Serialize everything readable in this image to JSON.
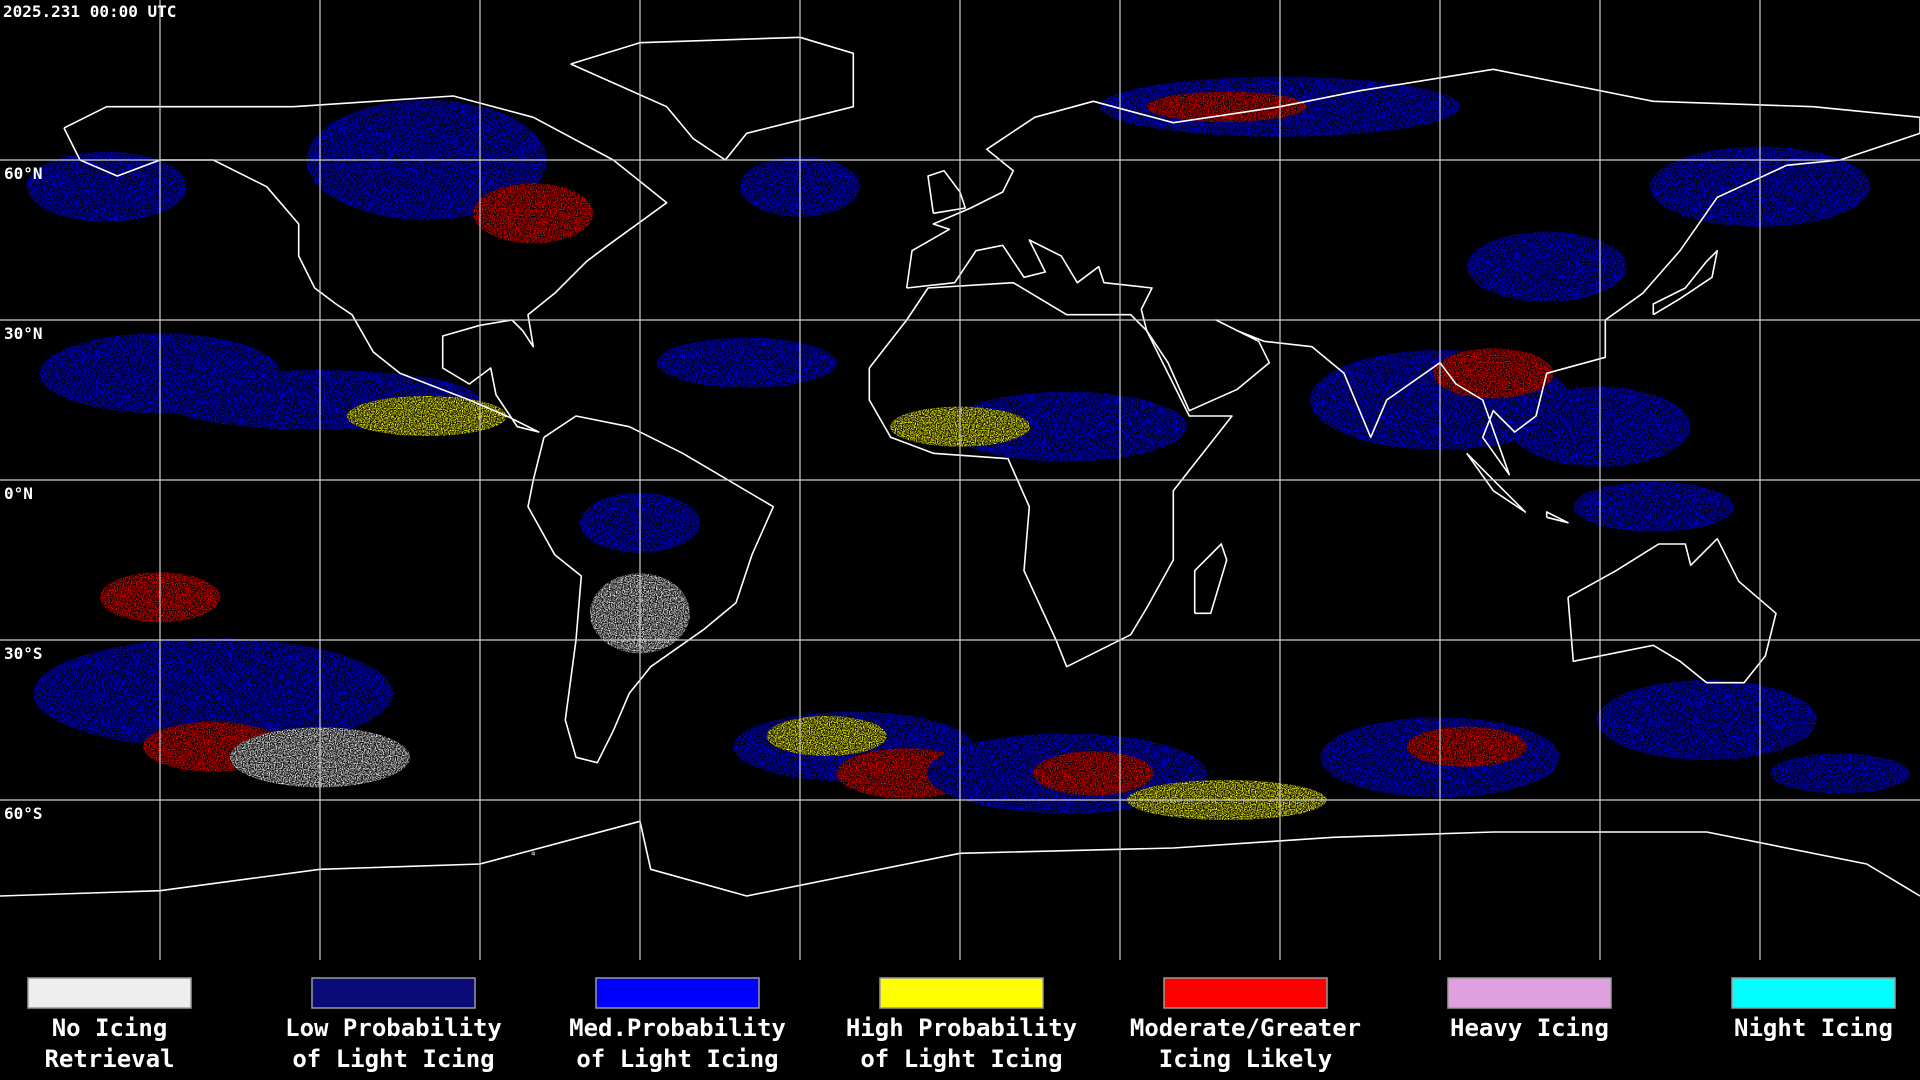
{
  "header": {
    "timestamp": "2025.231 00:00 UTC"
  },
  "map": {
    "latitude_labels": [
      "60°N",
      "30°N",
      "0°N",
      "30°S",
      "60°S"
    ]
  },
  "legend": {
    "items": [
      {
        "label_lines": [
          "No Icing",
          "Retrieval"
        ],
        "color": "#eeeeee"
      },
      {
        "label_lines": [
          "Low Probability",
          "of Light Icing"
        ],
        "color": "#0a0a78"
      },
      {
        "label_lines": [
          "Med.Probability",
          "of Light Icing"
        ],
        "color": "#0000ff"
      },
      {
        "label_lines": [
          "High Probability",
          "of Light Icing"
        ],
        "color": "#ffff00"
      },
      {
        "label_lines": [
          "Moderate/Greater",
          "Icing Likely"
        ],
        "color": "#ff0000"
      },
      {
        "label_lines": [
          "Heavy Icing"
        ],
        "color": "#e0a0e0"
      },
      {
        "label_lines": [
          "Night Icing"
        ],
        "color": "#00ffff"
      }
    ]
  }
}
